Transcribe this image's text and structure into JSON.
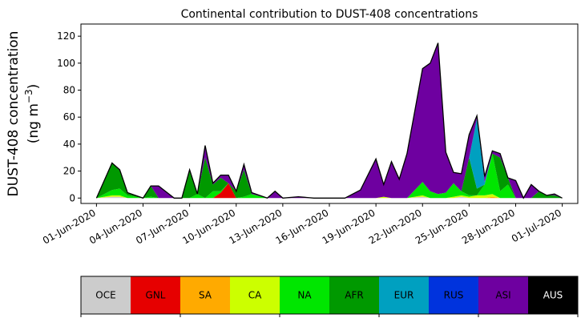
{
  "chart_data": {
    "type": "area",
    "title": "Continental contribution to DUST-408 concentrations",
    "ylabel_line1": "DUST-408 concentration",
    "ylabel_line2_prefix": "(ng m",
    "ylabel_line2_sup": "−3",
    "ylabel_line2_suffix": ")",
    "ylim": [
      -4,
      129
    ],
    "yticks": [
      0,
      20,
      40,
      60,
      80,
      100,
      120
    ],
    "xlim": [
      -1.0,
      31.0
    ],
    "x_start": "01-Jun-2020",
    "xticks": [
      {
        "label": "01-Jun-2020",
        "day": 0
      },
      {
        "label": "04-Jun-2020",
        "day": 3
      },
      {
        "label": "07-Jun-2020",
        "day": 6
      },
      {
        "label": "10-Jun-2020",
        "day": 9
      },
      {
        "label": "13-Jun-2020",
        "day": 12
      },
      {
        "label": "16-Jun-2020",
        "day": 15
      },
      {
        "label": "19-Jun-2020",
        "day": 18
      },
      {
        "label": "22-Jun-2020",
        "day": 21
      },
      {
        "label": "25-Jun-2020",
        "day": 24
      },
      {
        "label": "28-Jun-2020",
        "day": 27
      },
      {
        "label": "01-Jul-2020",
        "day": 30
      }
    ],
    "x": [
      0,
      1,
      1.5,
      2,
      3,
      3.5,
      4,
      5,
      5.5,
      6,
      6.5,
      7,
      7.5,
      8,
      8.5,
      9,
      9.5,
      10,
      11,
      11.5,
      12,
      13,
      14,
      15,
      16,
      17,
      18,
      18.5,
      19,
      19.5,
      20,
      21,
      21.5,
      22,
      22.5,
      23,
      23.5,
      24,
      24.5,
      25,
      25.5,
      26,
      26.5,
      27,
      27.5,
      28,
      28.5,
      29,
      29.5,
      30
    ],
    "series": [
      {
        "name": "OCE",
        "color": "#cccccc",
        "values": [
          0,
          1,
          1,
          0,
          0,
          0,
          0,
          0,
          0,
          0,
          0,
          0,
          0,
          0,
          0,
          0,
          0,
          0,
          0,
          0,
          0,
          0,
          0,
          0,
          0,
          0,
          0,
          0,
          0,
          0,
          0,
          1,
          0,
          0,
          0,
          0,
          1,
          0,
          0,
          0,
          0,
          0,
          0,
          0,
          0,
          0,
          0,
          0,
          0,
          0
        ]
      },
      {
        "name": "GNL",
        "color": "#e60000",
        "values": [
          0,
          0,
          0,
          0,
          0,
          0,
          0,
          0,
          0,
          0,
          0,
          0,
          0,
          4,
          11,
          0,
          0,
          0,
          0,
          0,
          0,
          0,
          0,
          0,
          0,
          0,
          0,
          0,
          0,
          0,
          0,
          0,
          0,
          0,
          0,
          0,
          0,
          0,
          0,
          0,
          0,
          0,
          0,
          0,
          0,
          0,
          0,
          0,
          0,
          0
        ]
      },
      {
        "name": "SA",
        "color": "#ffaa00",
        "values": [
          0,
          0,
          0,
          0,
          0,
          0,
          0,
          0,
          0,
          0,
          0,
          0,
          0,
          0,
          0,
          0,
          0,
          0,
          0,
          0,
          0,
          0,
          0,
          0,
          0,
          0,
          0,
          0,
          0,
          0,
          0,
          0,
          0,
          0,
          0,
          0,
          0,
          0,
          0,
          0,
          1,
          0,
          0,
          0,
          0,
          0,
          0,
          0,
          0,
          0
        ]
      },
      {
        "name": "CA",
        "color": "#ccff00",
        "values": [
          0,
          1,
          1,
          0,
          0,
          0,
          0,
          0,
          0,
          0,
          0,
          0,
          0,
          0,
          0,
          0,
          0,
          0,
          0,
          0,
          0,
          0,
          0,
          0,
          0,
          0,
          0,
          1,
          0,
          0,
          0,
          1,
          0,
          0,
          0,
          1,
          1,
          1,
          2,
          2,
          2,
          0,
          0,
          0,
          0,
          0,
          0,
          0,
          0,
          0
        ]
      },
      {
        "name": "NA",
        "color": "#00e600",
        "values": [
          0,
          4,
          5,
          2,
          0,
          1,
          0,
          0,
          0,
          0,
          3,
          0,
          5,
          1,
          0,
          0,
          1,
          3,
          0,
          0,
          0,
          0,
          0,
          0,
          0,
          0,
          0,
          0,
          0,
          0,
          0,
          10,
          5,
          3,
          4,
          10,
          3,
          1,
          0,
          8,
          30,
          5,
          10,
          0,
          0,
          0,
          0,
          0,
          0,
          0
        ]
      },
      {
        "name": "AFR",
        "color": "#009900",
        "values": [
          0,
          20,
          14,
          2,
          0,
          8,
          0,
          0,
          0,
          20,
          0,
          30,
          5,
          10,
          0,
          5,
          20,
          0,
          0,
          0,
          0,
          0,
          0,
          0,
          0,
          0,
          0,
          0,
          0,
          0,
          0,
          0,
          0,
          0,
          0,
          0,
          0,
          28,
          5,
          0,
          0,
          25,
          5,
          0,
          0,
          0,
          5,
          2,
          2,
          0
        ]
      },
      {
        "name": "EUR",
        "color": "#00a0c0",
        "values": [
          0,
          0,
          0,
          0,
          0,
          0,
          0,
          0,
          0,
          0,
          0,
          0,
          0,
          0,
          0,
          0,
          0,
          0,
          0,
          0,
          0,
          0,
          0,
          0,
          0,
          0,
          0,
          0,
          0,
          0,
          0,
          0,
          0,
          0,
          0,
          0,
          0,
          0,
          52,
          2,
          0,
          0,
          0,
          0,
          0,
          0,
          0,
          0,
          0,
          0
        ]
      },
      {
        "name": "RUS",
        "color": "#0033dd",
        "values": [
          0,
          0,
          0,
          0,
          0,
          0,
          0,
          0,
          0,
          0,
          0,
          0,
          0,
          0,
          0,
          0,
          0,
          0,
          0,
          0,
          0,
          0,
          0,
          0,
          0,
          0,
          0,
          0,
          0,
          0,
          0,
          0,
          0,
          0,
          0,
          0,
          0,
          0,
          0,
          0,
          0,
          0,
          0,
          0,
          0,
          0,
          0,
          0,
          0,
          0
        ]
      },
      {
        "name": "ASI",
        "color": "#6e00a0",
        "values": [
          0,
          0,
          0,
          0,
          0,
          0,
          9,
          0,
          0,
          1,
          0,
          9,
          1,
          2,
          6,
          0,
          4,
          1,
          0,
          5,
          0,
          1,
          0,
          0,
          0,
          6,
          29,
          9,
          27,
          14,
          33,
          84,
          95,
          112,
          30,
          8,
          13,
          17,
          2,
          4,
          2,
          3,
          0,
          13,
          0,
          10,
          0,
          0,
          1,
          0
        ]
      },
      {
        "name": "AUS",
        "color": "#000000",
        "values": [
          0,
          0,
          0,
          0,
          0,
          0,
          0,
          0,
          0,
          0,
          0,
          0,
          0,
          0,
          0,
          0,
          0,
          0,
          0,
          0,
          0,
          0,
          0,
          0,
          0,
          0,
          0,
          0,
          0,
          0,
          0,
          0,
          0,
          0,
          0,
          0,
          0,
          0,
          0,
          0,
          0,
          0,
          0,
          0,
          0,
          0,
          0,
          0,
          0,
          0
        ]
      }
    ],
    "legend_placement": "bottom",
    "grid": false
  }
}
